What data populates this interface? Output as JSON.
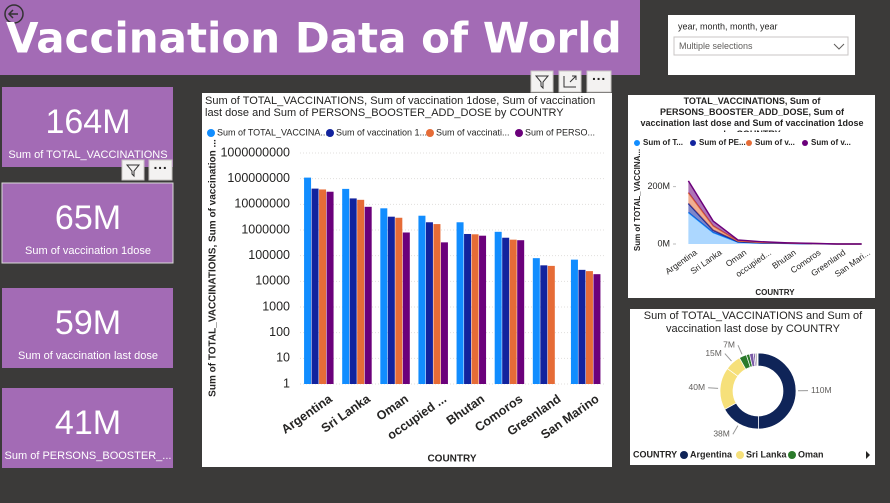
{
  "header": {
    "title": "Vaccination Data of World"
  },
  "slicer": {
    "label": "year, month, month, year",
    "value": "Multiple selections"
  },
  "cards": [
    {
      "value": "164M",
      "label": "Sum of TOTAL_VACCINATIONS"
    },
    {
      "value": "65M",
      "label": "Sum of vaccination 1dose"
    },
    {
      "value": "59M",
      "label": "Sum of vaccination last dose"
    },
    {
      "value": "41M",
      "label": "Sum of PERSONS_BOOSTER_..."
    }
  ],
  "chart_data": [
    {
      "type": "bar",
      "title": "Sum of TOTAL_VACCINATIONS, Sum of vaccination 1dose, Sum of vaccination last dose and Sum of PERSONS_BOOSTER_ADD_DOSE by COUNTRY",
      "x_label": "COUNTRY",
      "y_label": "Sum of TOTAL_VACCINATIONS, Sum of vaccination ...",
      "log_scale": true,
      "ylim": [
        1,
        1000000000
      ],
      "yticks": [
        1,
        10,
        100,
        1000,
        10000,
        100000,
        1000000,
        10000000,
        100000000,
        1000000000
      ],
      "categories": [
        "Argentina",
        "Sri Lanka",
        "Oman",
        "occupied ...",
        "Bhutan",
        "Comoros",
        "Greenland",
        "San Marino"
      ],
      "series": [
        {
          "name": "Sum of TOTAL_VACCINA...",
          "color": "#118dff",
          "values": [
            110000000,
            40000000,
            7000000,
            3600000,
            2000000,
            850000,
            80000,
            70000
          ]
        },
        {
          "name": "Sum of vaccination 1...",
          "color": "#12239e",
          "values": [
            41000000,
            17000000,
            3300000,
            2000000,
            700000,
            500000,
            42000,
            28000
          ]
        },
        {
          "name": "Sum of vaccinati...",
          "color": "#e66c37",
          "values": [
            38000000,
            15000000,
            3000000,
            1700000,
            680000,
            420000,
            40000,
            25000
          ]
        },
        {
          "name": "Sum of PERSO...",
          "color": "#6b007b",
          "values": [
            31000000,
            8000000,
            800000,
            330000,
            600000,
            400000,
            null,
            19000
          ]
        }
      ]
    },
    {
      "type": "stacked_area",
      "title": "TOTAL_VACCINATIONS, Sum of PERSONS_BOOSTER_ADD_DOSE, Sum of vaccination last dose and Sum of vaccination 1dose by COUNTRY",
      "x_label": "COUNTRY",
      "y_label": "Sum of TOTAL_VACCINA...",
      "ylim": [
        0,
        230000000
      ],
      "yticks": [
        {
          "value": 0,
          "label": "0M"
        },
        {
          "value": 200000000,
          "label": "200M"
        }
      ],
      "categories": [
        "Argentina",
        "Sri Lanka",
        "Oman",
        "occupied...",
        "Bhutan",
        "Comoros",
        "Greenland",
        "San Mari..."
      ],
      "series": [
        {
          "name": "Sum of T...",
          "color": "#118dff",
          "values": [
            110000000,
            40000000,
            7000000,
            3600000,
            2000000,
            850000,
            80000,
            70000
          ]
        },
        {
          "name": "Sum of PE...",
          "color": "#12239e",
          "values": [
            31000000,
            8000000,
            800000,
            330000,
            600000,
            400000,
            null,
            19000
          ]
        },
        {
          "name": "Sum of v...",
          "color": "#e66c37",
          "values": [
            38000000,
            15000000,
            3000000,
            1700000,
            680000,
            420000,
            40000,
            25000
          ]
        },
        {
          "name": "Sum of v...",
          "color": "#6b007b",
          "values": [
            41000000,
            17000000,
            3300000,
            2000000,
            700000,
            500000,
            42000,
            28000
          ]
        }
      ]
    },
    {
      "type": "donut",
      "title": "Sum of TOTAL_VACCINATIONS and Sum of vaccination last dose by COUNTRY",
      "legend_title": "COUNTRY",
      "legend": [
        {
          "name": "Argentina",
          "color": "#0f2458"
        },
        {
          "name": "Sri Lanka",
          "color": "#f6e07a"
        },
        {
          "name": "Oman",
          "color": "#2b7a2b"
        }
      ],
      "values": [
        110000000,
        38000000,
        40000000,
        15000000,
        7000000,
        3000000,
        3600000,
        1700000,
        2000000,
        680000
      ],
      "value_labels": [
        "110M",
        "38M",
        "40M",
        "15M",
        "7M",
        null,
        null,
        null,
        null,
        null
      ],
      "colors": [
        "#0f2458",
        "#0f2458",
        "#f6e07a",
        "#f6e07a",
        "#2b7a2b",
        "#2b7a2b",
        "#7a5aa6",
        "#7a5aa6",
        "#b9b9b9",
        "#b9b9b9"
      ]
    }
  ]
}
